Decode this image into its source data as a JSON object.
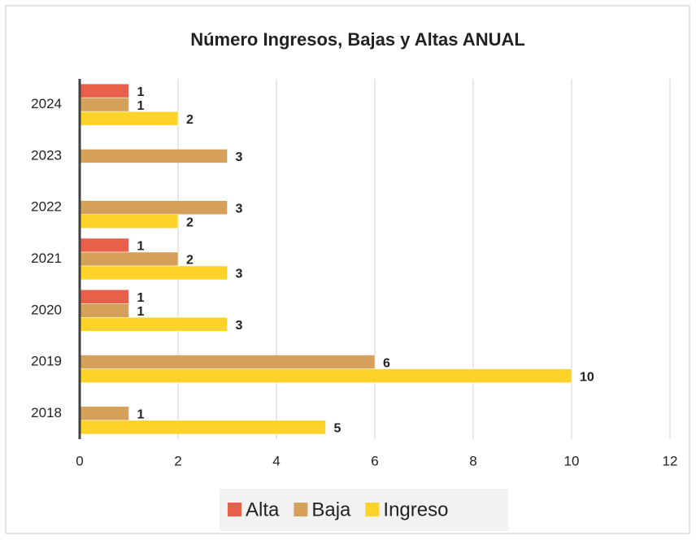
{
  "chart_data": {
    "type": "hbar",
    "title": "Número Ingresos, Bajas y Altas ANUAL",
    "categories": [
      "2018",
      "2019",
      "2020",
      "2021",
      "2022",
      "2023",
      "2024"
    ],
    "series": [
      {
        "name": "Alta",
        "color": "#e8604a",
        "values": [
          null,
          null,
          1,
          1,
          null,
          null,
          1
        ]
      },
      {
        "name": "Baja",
        "color": "#d4a05a",
        "values": [
          1,
          6,
          1,
          2,
          3,
          3,
          1
        ]
      },
      {
        "name": "Ingreso",
        "color": "#fdd32a",
        "values": [
          5,
          10,
          3,
          3,
          2,
          null,
          2
        ]
      }
    ],
    "xlim": [
      0,
      12
    ],
    "xticks": [
      0,
      2,
      4,
      6,
      8,
      10,
      12
    ],
    "grid": true,
    "legend": "bottom"
  }
}
